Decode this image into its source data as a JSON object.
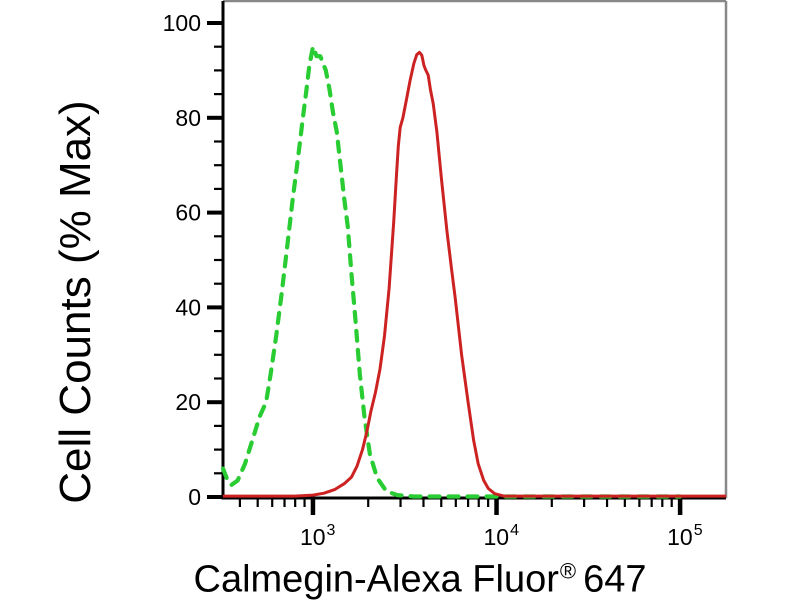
{
  "chart_data": {
    "type": "line",
    "subtype": "flow-cytometry-histogram",
    "title": "",
    "xlabel": "Calmegin-Alexa Fluor® 647",
    "xlabel_main": "Calmegin-Alexa Fluor",
    "xlabel_reg": "®",
    "xlabel_num": "647",
    "ylabel": "Cell Counts (% Max)",
    "x_scale": "log",
    "x_range_log": [
      2.51,
      5.25
    ],
    "x_major_ticks": [
      {
        "log": 3,
        "label_base": "10",
        "label_exp": "3"
      },
      {
        "log": 4,
        "label_base": "10",
        "label_exp": "4"
      },
      {
        "log": 5,
        "label_base": "10",
        "label_exp": "5"
      }
    ],
    "y_range": [
      0,
      100
    ],
    "y_major_ticks": [
      0,
      20,
      40,
      60,
      80,
      100
    ],
    "y_minor_step": 5,
    "grid": false,
    "legend": "none",
    "colors": {
      "dashed_green": "#29cc33",
      "solid_red": "#cc2222",
      "axis": "#000000",
      "frame": "#888888",
      "background": "#ffffff"
    },
    "series": [
      {
        "name": "dashed-green",
        "style": "dashed",
        "color_key": "dashed_green",
        "peak": {
          "x": 1000,
          "y": 95
        },
        "points": [
          [
            2.51,
            6
          ],
          [
            2.53,
            4
          ],
          [
            2.555,
            2.5
          ],
          [
            2.59,
            3.5
          ],
          [
            2.63,
            7
          ],
          [
            2.67,
            12
          ],
          [
            2.71,
            17
          ],
          [
            2.745,
            20
          ],
          [
            2.77,
            26
          ],
          [
            2.8,
            34
          ],
          [
            2.83,
            43
          ],
          [
            2.86,
            53
          ],
          [
            2.89,
            63
          ],
          [
            2.92,
            72
          ],
          [
            2.945,
            80
          ],
          [
            2.965,
            86
          ],
          [
            2.98,
            91
          ],
          [
            3.0,
            95
          ],
          [
            3.02,
            93
          ],
          [
            3.04,
            93
          ],
          [
            3.07,
            90
          ],
          [
            3.09,
            86
          ],
          [
            3.11,
            81
          ],
          [
            3.13,
            77
          ],
          [
            3.15,
            70
          ],
          [
            3.17,
            63
          ],
          [
            3.19,
            57
          ],
          [
            3.21,
            47
          ],
          [
            3.23,
            38
          ],
          [
            3.255,
            26
          ],
          [
            3.28,
            17
          ],
          [
            3.31,
            9
          ],
          [
            3.35,
            4
          ],
          [
            3.4,
            1.2
          ],
          [
            3.46,
            0.4
          ],
          [
            3.55,
            0.1
          ],
          [
            4.1,
            0.1
          ],
          [
            5.0,
            0.1
          ]
        ]
      },
      {
        "name": "solid-red",
        "style": "solid",
        "color_key": "solid_red",
        "peak": {
          "x": 3800,
          "y": 94
        },
        "points": [
          [
            2.51,
            0.2
          ],
          [
            2.9,
            0.2
          ],
          [
            3.0,
            0.4
          ],
          [
            3.06,
            0.8
          ],
          [
            3.12,
            1.6
          ],
          [
            3.17,
            2.8
          ],
          [
            3.21,
            4.2
          ],
          [
            3.24,
            6.5
          ],
          [
            3.27,
            10
          ],
          [
            3.295,
            14
          ],
          [
            3.315,
            18
          ],
          [
            3.34,
            22
          ],
          [
            3.365,
            27
          ],
          [
            3.39,
            34
          ],
          [
            3.415,
            44
          ],
          [
            3.44,
            58
          ],
          [
            3.455,
            68
          ],
          [
            3.465,
            74
          ],
          [
            3.475,
            78
          ],
          [
            3.49,
            80
          ],
          [
            3.51,
            84
          ],
          [
            3.53,
            88
          ],
          [
            3.55,
            91.5
          ],
          [
            3.565,
            93.3
          ],
          [
            3.58,
            93.8
          ],
          [
            3.593,
            93.2
          ],
          [
            3.605,
            91
          ],
          [
            3.615,
            90
          ],
          [
            3.628,
            89
          ],
          [
            3.64,
            86
          ],
          [
            3.655,
            83
          ],
          [
            3.675,
            77
          ],
          [
            3.7,
            67
          ],
          [
            3.73,
            56
          ],
          [
            3.755,
            48
          ],
          [
            3.775,
            42
          ],
          [
            3.81,
            30
          ],
          [
            3.845,
            20
          ],
          [
            3.875,
            12
          ],
          [
            3.9,
            7
          ],
          [
            3.93,
            3.5
          ],
          [
            3.955,
            1.8
          ],
          [
            3.99,
            0.7
          ],
          [
            4.04,
            0.2
          ],
          [
            5.25,
            0.2
          ]
        ]
      }
    ]
  }
}
